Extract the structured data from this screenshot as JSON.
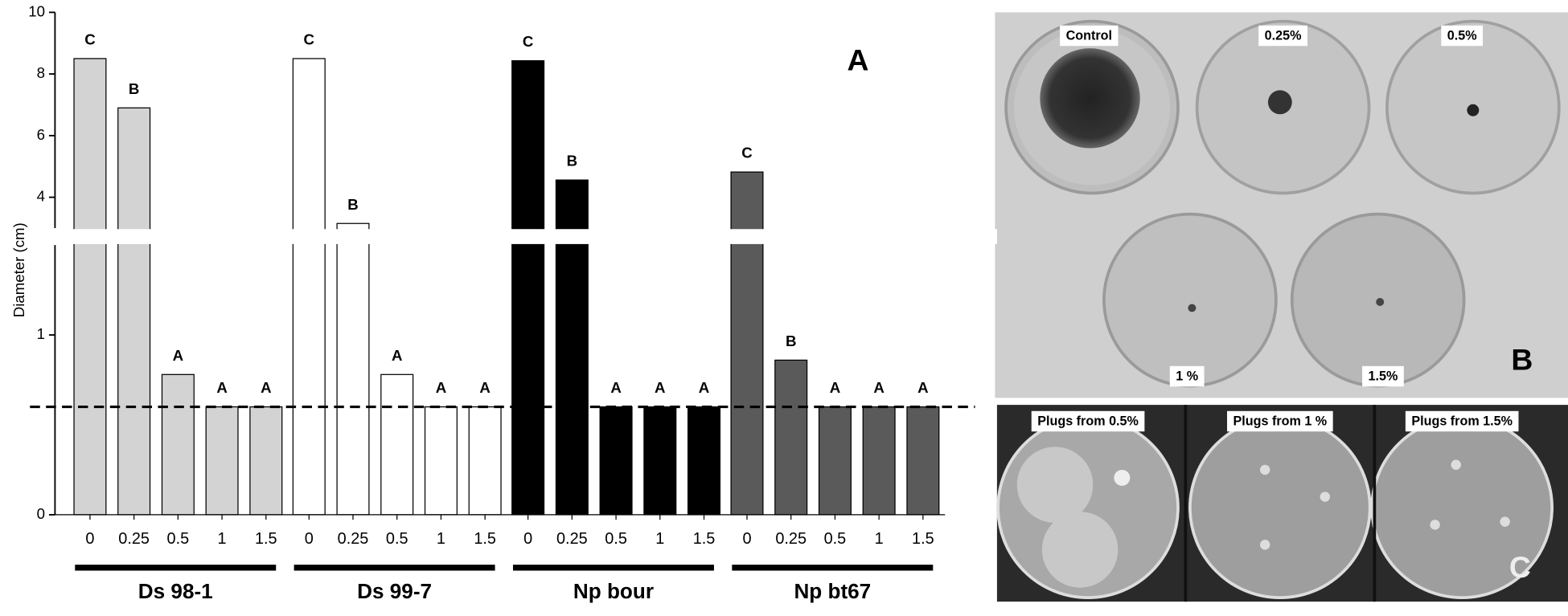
{
  "chart_data": {
    "type": "bar",
    "panel_label": "A",
    "y_label": "Diameter (cm)",
    "categories": [
      "0",
      "0.25",
      "0.5",
      "1",
      "1.5"
    ],
    "series": [
      {
        "name": "Ds 98-1",
        "color": "#d3d3d3",
        "values": [
          8.5,
          6.9,
          0.78,
          0.6,
          0.6
        ],
        "letters": [
          "C",
          "B",
          "A",
          "A",
          "A"
        ]
      },
      {
        "name": "Ds 99-7",
        "color": "#ffffff",
        "values": [
          8.5,
          3.15,
          0.78,
          0.6,
          0.6
        ],
        "letters": [
          "C",
          "B",
          "A",
          "A",
          "A"
        ]
      },
      {
        "name": "Np bour",
        "color": "#000000",
        "values": [
          8.43,
          4.56,
          0.6,
          0.6,
          0.6
        ],
        "letters": [
          "C",
          "B",
          "A",
          "A",
          "A"
        ]
      },
      {
        "name": "Np bt67",
        "color": "#5a5a5a",
        "values": [
          4.82,
          0.86,
          0.6,
          0.6,
          0.6
        ],
        "letters": [
          "C",
          "B",
          "A",
          "A",
          "A"
        ]
      }
    ],
    "ylim": [
      0,
      10
    ],
    "axis_break": [
      1.5,
      3
    ],
    "yticks": [
      0,
      1,
      4,
      6,
      8,
      10
    ],
    "reference_line": 0.6
  },
  "panel_b": {
    "label": "B",
    "plates": [
      "Control",
      "0.25%",
      "0.5%",
      "1 %",
      "1.5%"
    ]
  },
  "panel_c": {
    "label": "C",
    "plates": [
      "Plugs from 0.5%",
      "Plugs from 1 %",
      "Plugs from 1.5%"
    ]
  }
}
